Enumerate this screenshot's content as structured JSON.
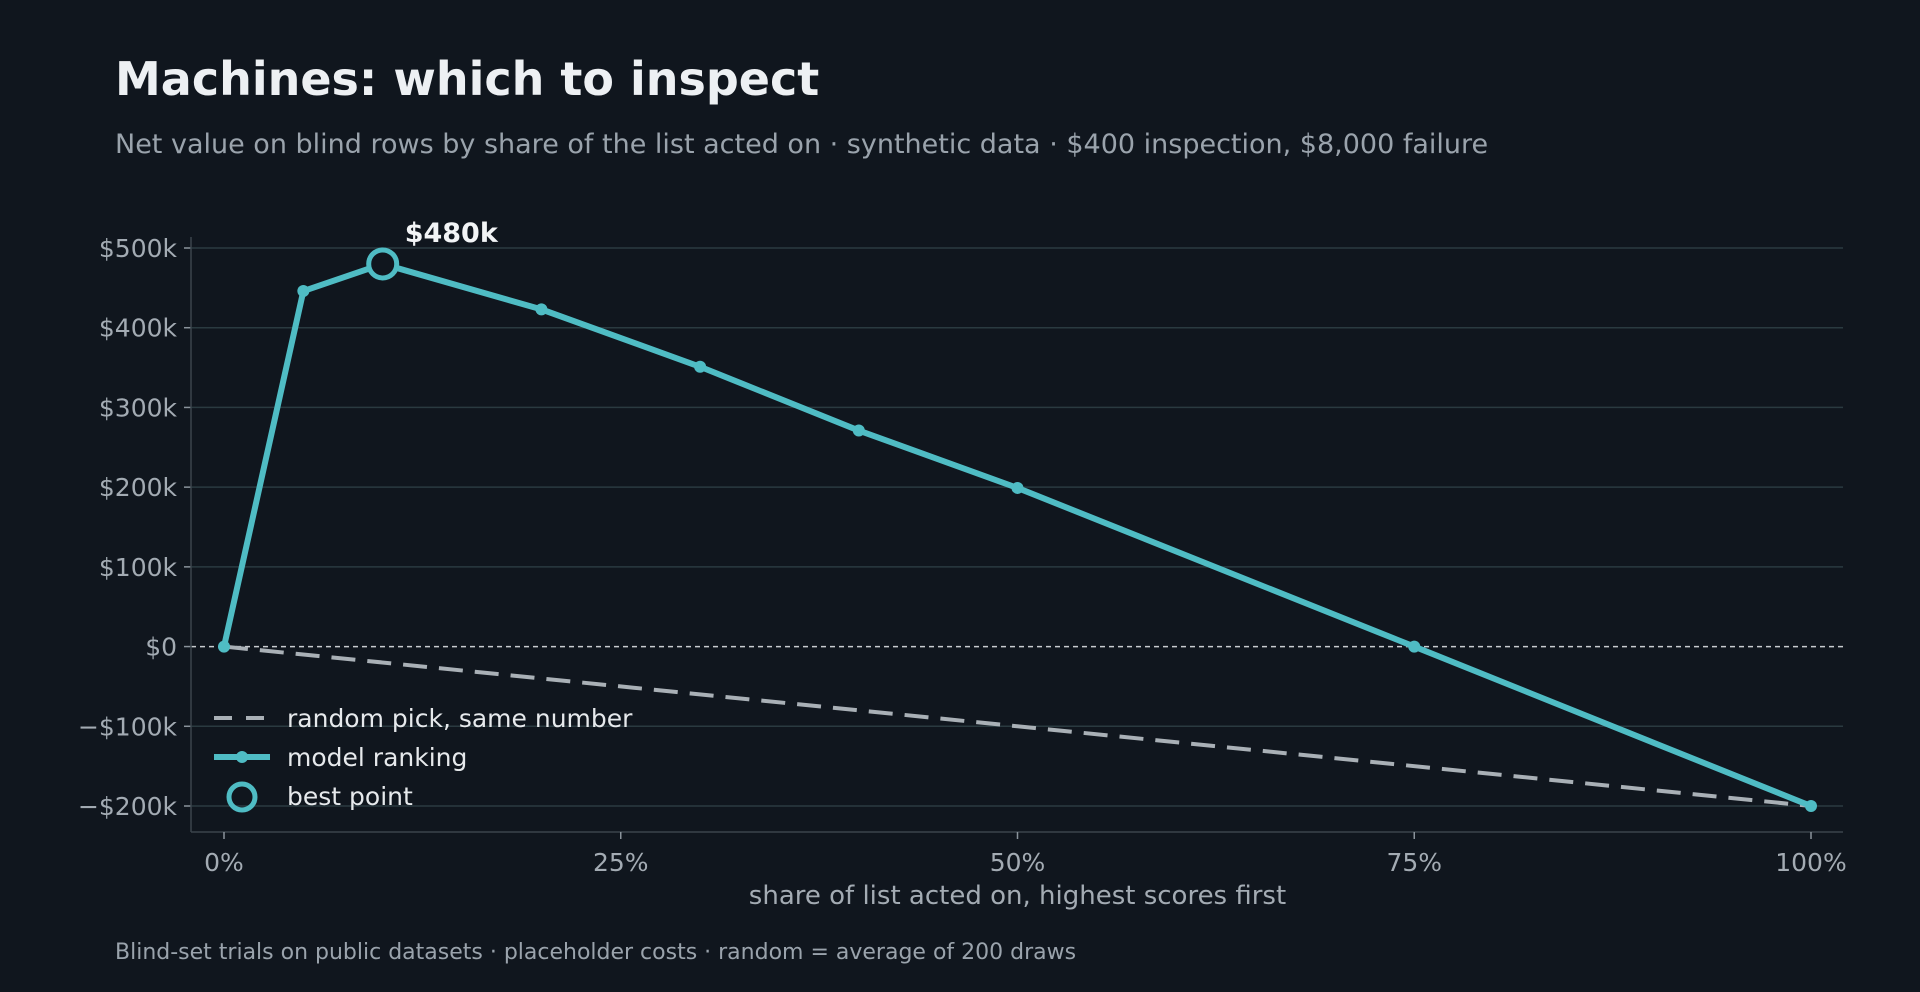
{
  "title": "Machines: which to inspect",
  "subtitle": "Net value on blind rows by share of the list acted on · synthetic data · $400 inspection, $8,000 failure",
  "footer": "Blind-set trials on public datasets · placeholder costs · random = average of 200 draws",
  "colors": {
    "background": "#10161e",
    "model": "#4fbcc4",
    "random": "#a9b0b6",
    "grid": "#2a3a40",
    "zero_line": "#c8ccd0"
  },
  "chart_data": {
    "type": "line",
    "xlabel": "share of list acted on, highest scores first",
    "ylabel": "",
    "xlim": [
      0,
      1
    ],
    "ylim": [
      -200000,
      500000
    ],
    "x_ticks": [
      {
        "value": 0,
        "label": "0%"
      },
      {
        "value": 0.25,
        "label": "25%"
      },
      {
        "value": 0.5,
        "label": "50%"
      },
      {
        "value": 0.75,
        "label": "75%"
      },
      {
        "value": 1.0,
        "label": "100%"
      }
    ],
    "y_ticks": [
      {
        "value": 500000,
        "label": "$500k"
      },
      {
        "value": 400000,
        "label": "$400k"
      },
      {
        "value": 300000,
        "label": "$300k"
      },
      {
        "value": 200000,
        "label": "$200k"
      },
      {
        "value": 100000,
        "label": "$100k"
      },
      {
        "value": 0,
        "label": "$0"
      },
      {
        "value": -100000,
        "label": "−$100k"
      },
      {
        "value": -200000,
        "label": "−$200k"
      }
    ],
    "grid": true,
    "legend_position": "bottom-left",
    "series": [
      {
        "name": "random pick, same number",
        "style": "dashed",
        "x": [
          0,
          1.0
        ],
        "y": [
          0,
          -200000
        ]
      },
      {
        "name": "model ranking",
        "style": "solid-markers",
        "x": [
          0,
          0.05,
          0.1,
          0.2,
          0.3,
          0.4,
          0.5,
          0.75,
          1.0
        ],
        "y": [
          0,
          446000,
          480000,
          423000,
          351000,
          271000,
          199000,
          0,
          -200000
        ]
      }
    ],
    "best_point": {
      "name": "best point",
      "x": 0.1,
      "y": 480000,
      "label": "$480k"
    }
  }
}
